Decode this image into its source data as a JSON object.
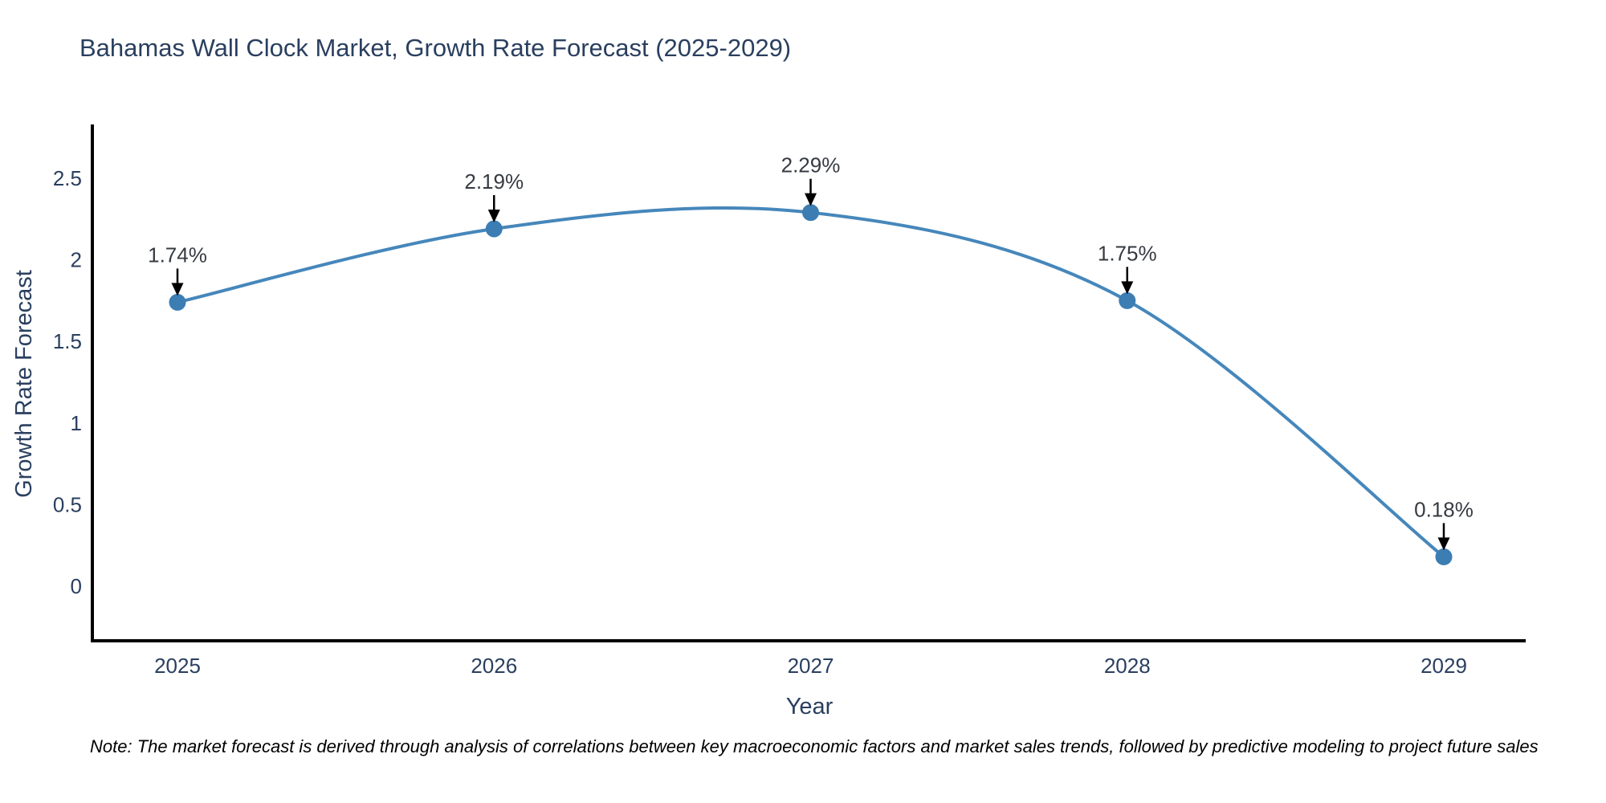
{
  "note": "Note: The market forecast is derived through analysis of correlations between key macroeconomic factors and market sales trends, followed by predictive modeling to project future sales",
  "chart_data": {
    "type": "line",
    "line_shape": "spline",
    "title": "Bahamas Wall Clock Market, Growth Rate Forecast (2025-2029)",
    "xlabel": "Year",
    "ylabel": "Growth Rate Forecast",
    "categories": [
      "2025",
      "2026",
      "2027",
      "2028",
      "2029"
    ],
    "values": [
      1.74,
      2.19,
      2.29,
      1.75,
      0.18
    ],
    "point_labels": [
      "1.74%",
      "2.19%",
      "2.29%",
      "1.75%",
      "0.18%"
    ],
    "ytick_labels": [
      "0",
      "0.5",
      "1",
      "1.5",
      "2",
      "2.5"
    ],
    "ytick_values": [
      0,
      0.5,
      1,
      1.5,
      2,
      2.5
    ],
    "ylim": [
      -0.35,
      2.85
    ],
    "grid": false,
    "legend": false,
    "markers": true,
    "annotations_have_arrows": true,
    "colors": {
      "line": "#4687bb",
      "marker": "#3c7db3",
      "axis_line": "#000000",
      "tick_text": "#2a3f5f",
      "axis_title_text": "#2a3f5f",
      "title_text": "#2a3f5f",
      "annotation_text": "#363b42",
      "arrow": "#000000"
    }
  }
}
